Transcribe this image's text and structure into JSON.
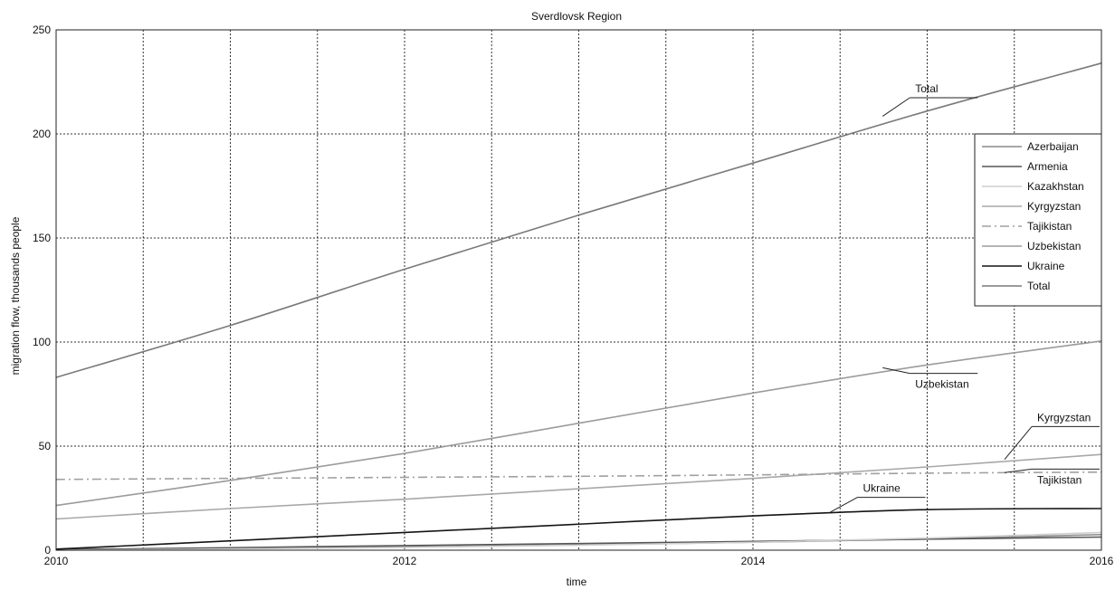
{
  "chart_data": {
    "type": "line",
    "title": "Sverdlovsk Region",
    "xlabel": "time",
    "ylabel": "migration flow, thousands people",
    "xlim": [
      2010,
      2016
    ],
    "ylim": [
      0,
      250
    ],
    "x_ticks": [
      2010,
      2012,
      2014,
      2016
    ],
    "y_ticks": [
      0,
      50,
      100,
      150,
      200,
      250
    ],
    "grid": true,
    "legend_position": "right",
    "series": [
      {
        "name": "Azerbaijan",
        "color": "#8a8a8a",
        "dash": "solid",
        "x": [
          2010,
          2011,
          2012,
          2013,
          2014,
          2015,
          2016
        ],
        "y": [
          0.3,
          0.8,
          1.5,
          2.5,
          3.8,
          5.4,
          7.5
        ]
      },
      {
        "name": "Armenia",
        "color": "#555555",
        "dash": "solid",
        "x": [
          2010,
          2011,
          2012,
          2013,
          2014,
          2015,
          2016
        ],
        "y": [
          0.3,
          1.2,
          2.2,
          3.2,
          4.2,
          5.3,
          6.3
        ]
      },
      {
        "name": "Kazakhstan",
        "color": "#cfcfcf",
        "dash": "solid",
        "x": [
          2010,
          2011,
          2012,
          2013,
          2014,
          2015,
          2016
        ],
        "y": [
          0.0,
          0.6,
          1.3,
          2.4,
          3.8,
          5.8,
          8.5
        ]
      },
      {
        "name": "Kyrgyzstan",
        "color": "#a8a8a8",
        "dash": "solid",
        "x": [
          2010,
          2011,
          2012,
          2013,
          2014,
          2015,
          2016
        ],
        "y": [
          15,
          20,
          24.5,
          29.5,
          34.5,
          40,
          46
        ]
      },
      {
        "name": "Tajikistan",
        "color": "#a0a0a0",
        "dash": "dashdot",
        "x": [
          2010,
          2011,
          2012,
          2013,
          2014,
          2015,
          2016
        ],
        "y": [
          34,
          34.5,
          35,
          35.5,
          36.2,
          37,
          37.5
        ]
      },
      {
        "name": "Uzbekistan",
        "color": "#9b9b9b",
        "dash": "solid",
        "x": [
          2010,
          2011,
          2012,
          2013,
          2014,
          2015,
          2016
        ],
        "y": [
          21.5,
          33.5,
          46.5,
          61,
          75.5,
          89,
          100.5
        ]
      },
      {
        "name": "Ukraine",
        "color": "#151515",
        "dash": "solid",
        "x": [
          2010,
          2011,
          2012,
          2013,
          2014,
          2015,
          2016
        ],
        "y": [
          0.5,
          4.5,
          8.5,
          12.5,
          16.5,
          19.5,
          20
        ]
      },
      {
        "name": "Total",
        "color": "#7a7a7a",
        "dash": "solid",
        "x": [
          2010,
          2011,
          2012,
          2013,
          2014,
          2015,
          2016
        ],
        "y": [
          83,
          108,
          135,
          161,
          186,
          211,
          234
        ]
      }
    ],
    "annotations": [
      {
        "text": "Total",
        "x": 2014.9,
        "y": 220
      },
      {
        "text": "Uzbekistan",
        "x": 2014.9,
        "y": 78
      },
      {
        "text": "Kyrgyzstan",
        "x": 2015.6,
        "y": 62
      },
      {
        "text": "Tajikistan",
        "x": 2015.6,
        "y": 32
      },
      {
        "text": "Ukraine",
        "x": 2014.6,
        "y": 28
      }
    ]
  }
}
